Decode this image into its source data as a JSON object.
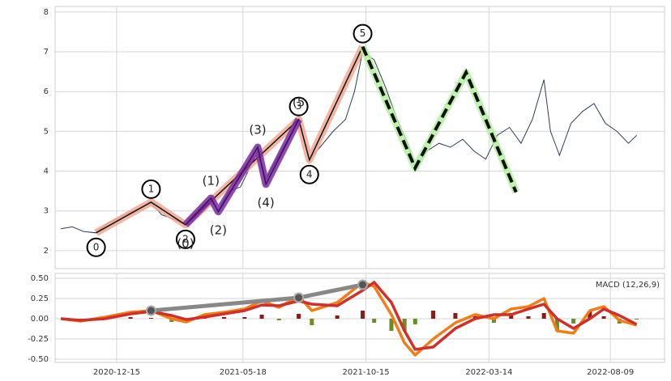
{
  "chart_data": [
    {
      "type": "line",
      "color": "#2f3e55",
      "grid": true,
      "xlim": [
        "2020-10-01",
        "2022-10-14"
      ],
      "ylim": [
        1.55,
        8.14
      ],
      "yticks": [
        2,
        3,
        4,
        5,
        6,
        7,
        8
      ],
      "xticks": [
        "2020-12-15",
        "2021-05-18",
        "2021-10-15",
        "2022-03-14",
        "2022-08-09"
      ],
      "x": [
        "2020-10-08",
        "2020-10-22",
        "2020-11-05",
        "2020-11-20",
        "2020-12-05",
        "2020-12-20",
        "2021-01-05",
        "2021-01-26",
        "2021-02-08",
        "2021-02-22",
        "2021-03-09",
        "2021-03-22",
        "2021-04-09",
        "2021-04-18",
        "2021-05-01",
        "2021-05-15",
        "2021-06-05",
        "2021-06-15",
        "2021-07-01",
        "2021-07-12",
        "2021-07-25",
        "2021-08-07",
        "2021-08-20",
        "2021-09-05",
        "2021-09-20",
        "2021-10-01",
        "2021-10-11",
        "2021-10-25",
        "2021-11-08",
        "2021-11-22",
        "2021-12-05",
        "2021-12-14",
        "2021-12-28",
        "2022-01-12",
        "2022-01-26",
        "2022-02-10",
        "2022-02-24",
        "2022-03-10",
        "2022-03-24",
        "2022-04-08",
        "2022-04-22",
        "2022-05-06",
        "2022-05-20",
        "2022-05-28",
        "2022-06-08",
        "2022-06-22",
        "2022-07-06",
        "2022-07-20",
        "2022-08-03",
        "2022-08-17",
        "2022-08-31",
        "2022-09-10"
      ],
      "values": [
        2.55,
        2.6,
        2.48,
        2.45,
        2.7,
        2.85,
        3.0,
        3.2,
        2.9,
        2.8,
        2.65,
        2.9,
        3.3,
        3.0,
        3.5,
        3.6,
        4.5,
        3.8,
        4.4,
        4.8,
        5.3,
        4.3,
        4.6,
        5.0,
        5.3,
        6.0,
        7.0,
        6.8,
        6.1,
        5.3,
        4.7,
        4.1,
        4.5,
        4.7,
        4.6,
        4.8,
        4.5,
        4.3,
        4.9,
        5.1,
        4.7,
        5.3,
        6.3,
        5.0,
        4.4,
        5.2,
        5.5,
        5.7,
        5.2,
        5.0,
        4.7,
        4.9
      ],
      "waves": [
        {
          "x": [
            "2020-11-20",
            "2021-01-26",
            "2021-03-09",
            "2021-07-25",
            "2021-08-07",
            "2021-10-11"
          ],
          "values": [
            2.45,
            3.22,
            2.65,
            5.3,
            4.28,
            7.13
          ],
          "labels": [
            "0",
            "1",
            "2",
            "3",
            "4",
            "5"
          ],
          "circled": true,
          "color": "#111111",
          "underlay": "#f0a890",
          "dashed": false
        },
        {
          "x": [
            "2021-03-09",
            "2021-04-09",
            "2021-04-18",
            "2021-06-05",
            "2021-06-15",
            "2021-07-25"
          ],
          "values": [
            2.65,
            3.32,
            2.98,
            4.6,
            3.67,
            5.3
          ],
          "labels": [
            "(0)",
            "(1)",
            "(2)",
            "(3)",
            "(4)",
            "(5"
          ],
          "circled": false,
          "color": "#3a1060",
          "underlay": "#7a2aa0",
          "dashed": false
        },
        {
          "x": [
            "2021-10-11",
            "2021-12-14",
            "2022-02-14",
            "2022-04-16"
          ],
          "values": [
            7.13,
            4.08,
            6.48,
            3.47
          ],
          "circled": false,
          "color": "#111111",
          "underlay": "#b4f0a0",
          "dashed": true
        }
      ]
    },
    {
      "type": "macd",
      "title": "MACD (12,26,9)",
      "grid": true,
      "xlim": [
        "2020-10-01",
        "2022-10-14"
      ],
      "ylim": [
        -0.54,
        0.56
      ],
      "yticks": [
        {
          "value": 0.5,
          "label": "0.50"
        },
        {
          "value": 0.25,
          "label": "0.25"
        },
        {
          "value": 0,
          "label": "0.00"
        },
        {
          "value": -0.25,
          "label": "-0.25"
        },
        {
          "value": -0.5,
          "label": "-0.50"
        }
      ],
      "xticks": [
        "2020-12-15",
        "2021-05-18",
        "2021-10-15",
        "2022-03-14",
        "2022-08-09"
      ],
      "x": [
        "2020-10-08",
        "2020-11-01",
        "2020-12-01",
        "2021-01-01",
        "2021-01-26",
        "2021-02-20",
        "2021-03-10",
        "2021-04-01",
        "2021-04-25",
        "2021-05-20",
        "2021-06-10",
        "2021-07-01",
        "2021-07-25",
        "2021-08-10",
        "2021-09-10",
        "2021-10-11",
        "2021-10-25",
        "2021-11-15",
        "2021-12-01",
        "2021-12-14",
        "2022-01-05",
        "2022-02-01",
        "2022-02-25",
        "2022-03-20",
        "2022-04-10",
        "2022-05-01",
        "2022-05-20",
        "2022-06-05",
        "2022-06-25",
        "2022-07-15",
        "2022-08-01",
        "2022-08-20",
        "2022-09-10"
      ],
      "macd": {
        "color": "#f57c14",
        "values": [
          0,
          -0.03,
          0.02,
          0.08,
          0.1,
          0.0,
          -0.04,
          0.05,
          0.08,
          0.12,
          0.22,
          0.14,
          0.28,
          0.1,
          0.2,
          0.45,
          0.4,
          0.05,
          -0.3,
          -0.45,
          -0.25,
          -0.05,
          0.05,
          0.0,
          0.12,
          0.15,
          0.25,
          -0.15,
          -0.18,
          0.1,
          0.15,
          -0.02,
          -0.08
        ]
      },
      "signal": {
        "color": "#d0302a",
        "values": [
          0,
          -0.02,
          0.0,
          0.06,
          0.09,
          0.04,
          -0.01,
          0.02,
          0.06,
          0.1,
          0.17,
          0.16,
          0.22,
          0.18,
          0.16,
          0.35,
          0.45,
          0.2,
          -0.15,
          -0.38,
          -0.35,
          -0.12,
          0.0,
          0.05,
          0.05,
          0.12,
          0.18,
          0.0,
          -0.12,
          0.0,
          0.12,
          0.04,
          -0.07
        ]
      },
      "histogram": {
        "up_color": "#8b1a1a",
        "down_color": "#6b8e23",
        "values": [
          0,
          -0.01,
          0.02,
          0.02,
          0.01,
          -0.04,
          -0.03,
          0.03,
          0.02,
          0.02,
          0.05,
          -0.02,
          0.06,
          -0.08,
          0.04,
          0.1,
          -0.05,
          -0.15,
          -0.15,
          -0.07,
          0.1,
          0.07,
          0.05,
          -0.05,
          0.07,
          0.03,
          0.07,
          -0.15,
          -0.06,
          0.1,
          0.03,
          -0.06,
          -0.01
        ]
      },
      "trend": {
        "color": "#888888",
        "x": [
          "2021-01-26",
          "2021-07-25",
          "2021-10-11"
        ],
        "values": [
          0.1,
          0.26,
          0.42
        ]
      }
    }
  ]
}
